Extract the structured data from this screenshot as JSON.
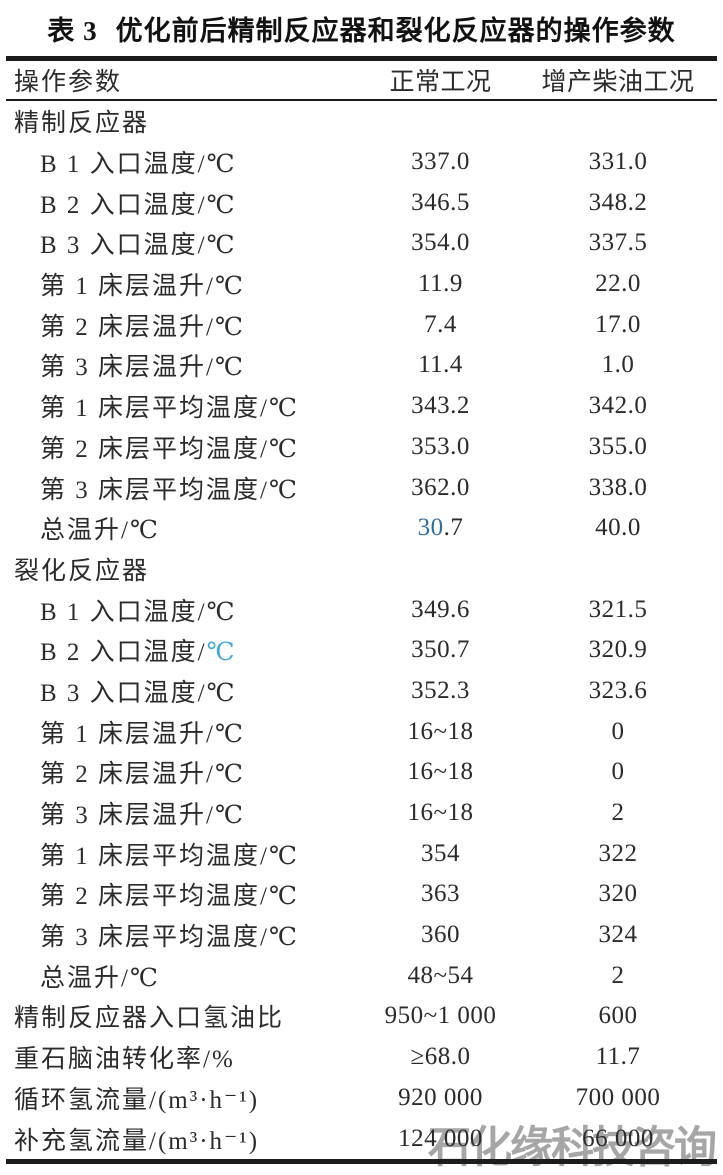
{
  "title": {
    "prefix": "表 3",
    "text": "优化前后精制反应器和裂化反应器的操作参数"
  },
  "header": {
    "col_param": "操作参数",
    "col_normal": "正常工况",
    "col_diesel": "增产柴油工况"
  },
  "colors": {
    "text": "#2b2b2b",
    "accent_blue": "#2e6f9d",
    "accent_cyan": "#3fa9dc",
    "watermark_gray": "#a6a6a6",
    "rule_black": "#1c1c1c"
  },
  "watermark": {
    "text": "石化缘科技咨询"
  },
  "rows": [
    {
      "indent": false,
      "label": [
        {
          "t": "精制反应器"
        }
      ],
      "normal": [],
      "diesel": []
    },
    {
      "indent": true,
      "label": [
        {
          "t": "B 1 入口温度/℃"
        }
      ],
      "normal": [
        {
          "t": "337.0"
        }
      ],
      "diesel": [
        {
          "t": "331.0"
        }
      ]
    },
    {
      "indent": true,
      "label": [
        {
          "t": "B 2 入口温度/℃"
        }
      ],
      "normal": [
        {
          "t": "346.5"
        }
      ],
      "diesel": [
        {
          "t": "348.2"
        }
      ]
    },
    {
      "indent": true,
      "label": [
        {
          "t": "B 3 入口温度/℃"
        }
      ],
      "normal": [
        {
          "t": "354.0"
        }
      ],
      "diesel": [
        {
          "t": "337.5"
        }
      ]
    },
    {
      "indent": true,
      "label": [
        {
          "t": "第 1 床层温升/℃"
        }
      ],
      "normal": [
        {
          "t": "11.9"
        }
      ],
      "diesel": [
        {
          "t": "22.0"
        }
      ]
    },
    {
      "indent": true,
      "label": [
        {
          "t": "第 2 床层温升/℃"
        }
      ],
      "normal": [
        {
          "t": "7.4"
        }
      ],
      "diesel": [
        {
          "t": "17.0"
        }
      ]
    },
    {
      "indent": true,
      "label": [
        {
          "t": "第 3 床层温升/℃"
        }
      ],
      "normal": [
        {
          "t": "11.4"
        }
      ],
      "diesel": [
        {
          "t": "1.0"
        }
      ]
    },
    {
      "indent": true,
      "label": [
        {
          "t": "第 1 床层平均温度/℃"
        }
      ],
      "normal": [
        {
          "t": "343.2"
        }
      ],
      "diesel": [
        {
          "t": "342.0"
        }
      ]
    },
    {
      "indent": true,
      "label": [
        {
          "t": "第 2 床层平均温度/℃"
        }
      ],
      "normal": [
        {
          "t": "353.0"
        }
      ],
      "diesel": [
        {
          "t": "355.0"
        }
      ]
    },
    {
      "indent": true,
      "label": [
        {
          "t": "第 3 床层平均温度/℃"
        }
      ],
      "normal": [
        {
          "t": "362.0"
        }
      ],
      "diesel": [
        {
          "t": "338.0"
        }
      ]
    },
    {
      "indent": true,
      "label": [
        {
          "t": "总温升/℃"
        }
      ],
      "normal": [
        {
          "t": "30",
          "c": "#2e6f9d"
        },
        {
          "t": ".7"
        }
      ],
      "diesel": [
        {
          "t": "40.0"
        }
      ]
    },
    {
      "indent": false,
      "label": [
        {
          "t": "裂化反应器"
        }
      ],
      "normal": [],
      "diesel": []
    },
    {
      "indent": true,
      "label": [
        {
          "t": "B 1 入口温度/℃"
        }
      ],
      "normal": [
        {
          "t": "349.6"
        }
      ],
      "diesel": [
        {
          "t": "321.5"
        }
      ]
    },
    {
      "indent": true,
      "label": [
        {
          "t": "B 2 入口温度/"
        },
        {
          "t": "℃",
          "c": "#3fa9dc"
        }
      ],
      "normal": [
        {
          "t": "350.7"
        }
      ],
      "diesel": [
        {
          "t": "320.9"
        }
      ]
    },
    {
      "indent": true,
      "label": [
        {
          "t": "B 3 入口温度/℃"
        }
      ],
      "normal": [
        {
          "t": "352.3"
        }
      ],
      "diesel": [
        {
          "t": "323.6"
        }
      ]
    },
    {
      "indent": true,
      "label": [
        {
          "t": "第 1 床层温升/℃"
        }
      ],
      "normal": [
        {
          "t": "16~18"
        }
      ],
      "diesel": [
        {
          "t": "0"
        }
      ]
    },
    {
      "indent": true,
      "label": [
        {
          "t": "第 2 床层温升/℃"
        }
      ],
      "normal": [
        {
          "t": "16~18"
        }
      ],
      "diesel": [
        {
          "t": "0"
        }
      ]
    },
    {
      "indent": true,
      "label": [
        {
          "t": "第 3 床层温升/℃"
        }
      ],
      "normal": [
        {
          "t": "16~18"
        }
      ],
      "diesel": [
        {
          "t": "2"
        }
      ]
    },
    {
      "indent": true,
      "label": [
        {
          "t": "第 1 床层平均温度/℃"
        }
      ],
      "normal": [
        {
          "t": "354"
        }
      ],
      "diesel": [
        {
          "t": "322"
        }
      ]
    },
    {
      "indent": true,
      "label": [
        {
          "t": "第 2 床层平均温度/℃"
        }
      ],
      "normal": [
        {
          "t": "363"
        }
      ],
      "diesel": [
        {
          "t": "320"
        }
      ]
    },
    {
      "indent": true,
      "label": [
        {
          "t": "第 3 床层平均温度/℃"
        }
      ],
      "normal": [
        {
          "t": "360"
        }
      ],
      "diesel": [
        {
          "t": "324"
        }
      ]
    },
    {
      "indent": true,
      "label": [
        {
          "t": "总温升/℃"
        }
      ],
      "normal": [
        {
          "t": "48~54"
        }
      ],
      "diesel": [
        {
          "t": "2"
        }
      ]
    },
    {
      "indent": false,
      "label": [
        {
          "t": "精制反应器入口氢油比"
        }
      ],
      "normal": [
        {
          "t": "950~1 000"
        }
      ],
      "diesel": [
        {
          "t": "600"
        }
      ]
    },
    {
      "indent": false,
      "label": [
        {
          "t": "重石脑油转化率/%"
        }
      ],
      "normal": [
        {
          "t": "≥68.0"
        }
      ],
      "diesel": [
        {
          "t": "11.7"
        }
      ]
    },
    {
      "indent": false,
      "label": [
        {
          "t": "循环氢流量/(m³·h⁻¹)"
        }
      ],
      "normal": [
        {
          "t": "920 000"
        }
      ],
      "diesel": [
        {
          "t": "700 000"
        }
      ]
    },
    {
      "indent": false,
      "label": [
        {
          "t": "补充氢流量/(m³·h⁻¹)"
        }
      ],
      "normal": [
        {
          "t": "124 000"
        }
      ],
      "diesel": [
        {
          "t": "66 000"
        }
      ]
    }
  ]
}
